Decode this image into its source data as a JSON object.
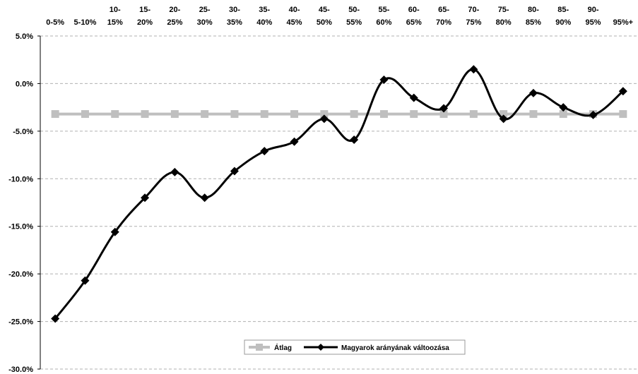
{
  "chart_data": {
    "type": "line",
    "categories": [
      [
        "0-5%"
      ],
      [
        "5-10%"
      ],
      [
        "10-",
        "15%"
      ],
      [
        "15-",
        "20%"
      ],
      [
        "20-",
        "25%"
      ],
      [
        "25-",
        "30%"
      ],
      [
        "30-",
        "35%"
      ],
      [
        "35-",
        "40%"
      ],
      [
        "40-",
        "45%"
      ],
      [
        "45-",
        "50%"
      ],
      [
        "50-",
        "55%"
      ],
      [
        "55-",
        "60%"
      ],
      [
        "60-",
        "65%"
      ],
      [
        "65-",
        "70%"
      ],
      [
        "70-",
        "75%"
      ],
      [
        "75-",
        "80%"
      ],
      [
        "80-",
        "85%"
      ],
      [
        "85-",
        "90%"
      ],
      [
        "90-",
        "95%"
      ],
      [
        "95%+"
      ]
    ],
    "series": [
      {
        "name": "Átlag",
        "color": "#bfbfbf",
        "marker": "square",
        "smooth": false,
        "values": [
          -3.2,
          -3.2,
          -3.2,
          -3.2,
          -3.2,
          -3.2,
          -3.2,
          -3.2,
          -3.2,
          -3.2,
          -3.2,
          -3.2,
          -3.2,
          -3.2,
          -3.2,
          -3.2,
          -3.2,
          -3.2,
          -3.2,
          -3.2
        ]
      },
      {
        "name": "Magyarok arányának váltoozása",
        "color": "#000000",
        "marker": "diamond",
        "smooth": true,
        "values": [
          -24.7,
          -20.7,
          -15.6,
          -12.0,
          -9.3,
          -12.0,
          -9.2,
          -7.1,
          -6.1,
          -3.7,
          -5.9,
          0.4,
          -1.5,
          -2.6,
          1.5,
          -3.7,
          -1.0,
          -2.5,
          -3.3,
          -0.8
        ]
      }
    ],
    "y_ticks": [
      "5.0%",
      "0.0%",
      "-5.0%",
      "-10.0%",
      "-15.0%",
      "-20.0%",
      "-25.0%",
      "-30.0%"
    ],
    "ylim": [
      -30,
      5
    ],
    "grid": "horizontal-dashed",
    "legend_position": "bottom-center"
  }
}
